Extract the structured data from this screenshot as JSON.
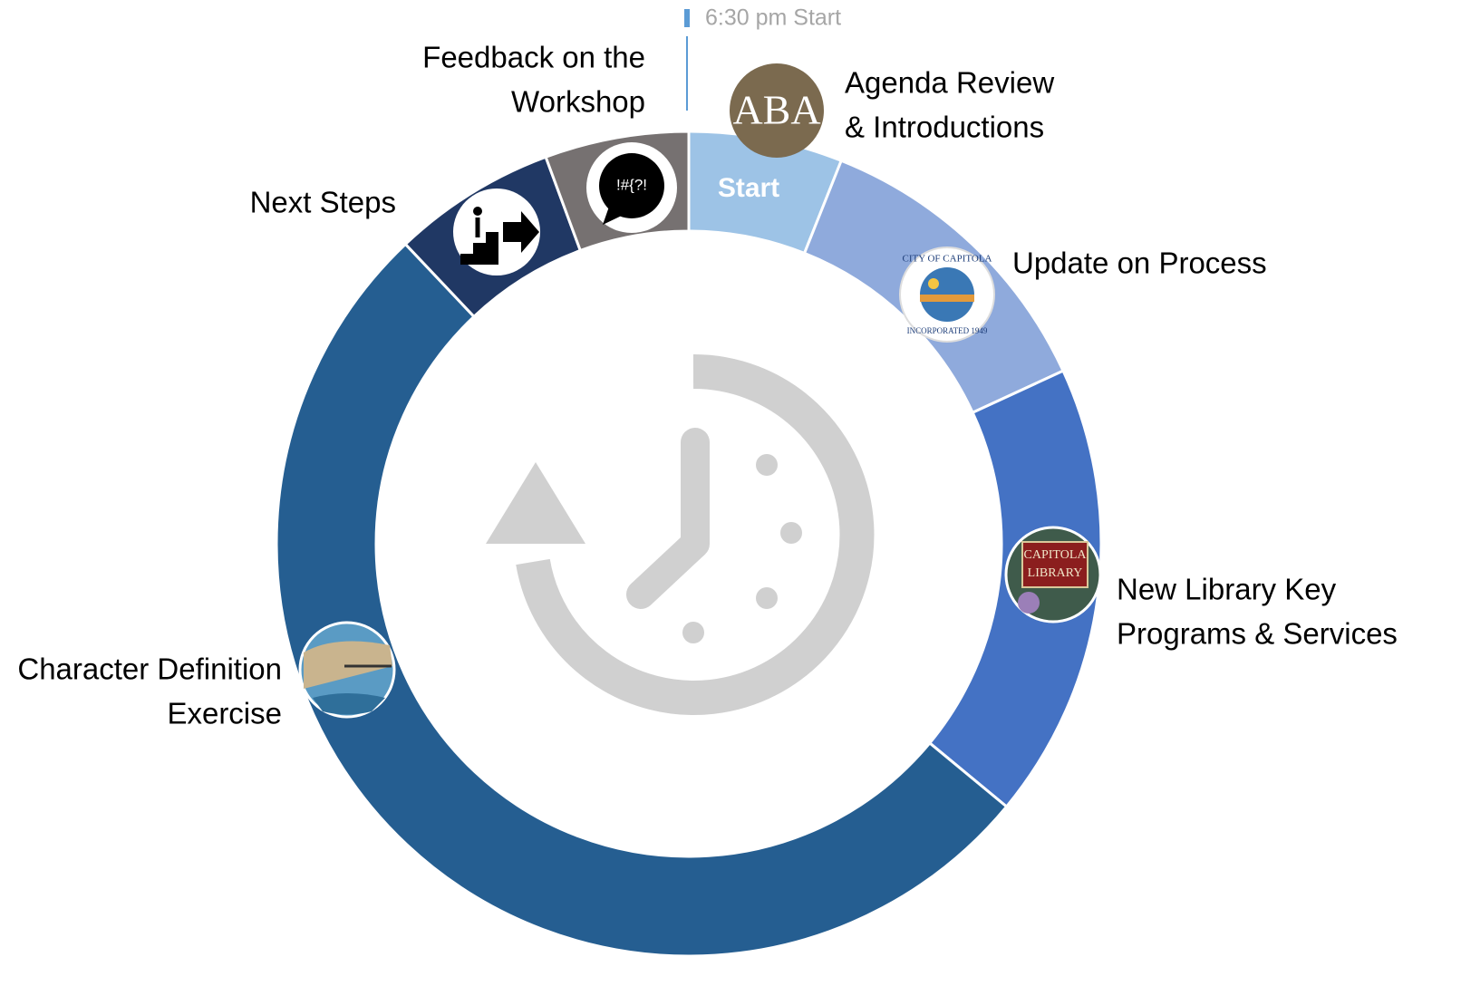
{
  "header": {
    "start_time": "6:30 pm Start"
  },
  "items": [
    {
      "lines": [
        "Agenda Review",
        "& Introductions"
      ],
      "inner_label": "Start",
      "icon_text": "ABA"
    },
    {
      "lines": [
        "Update on Process"
      ],
      "icon_text": [
        "CITY OF CAPITOLA",
        "INCORPORATED 1949"
      ]
    },
    {
      "lines": [
        "New Library Key",
        "Programs & Services"
      ],
      "icon_text": [
        "CAPITOLA",
        "LIBRARY"
      ]
    },
    {
      "lines": [
        "Character Definition",
        "Exercise"
      ]
    },
    {
      "lines": [
        "Next Steps"
      ]
    },
    {
      "lines": [
        "Feedback on the",
        "Workshop"
      ],
      "icon_text": "!#{?!"
    }
  ]
}
